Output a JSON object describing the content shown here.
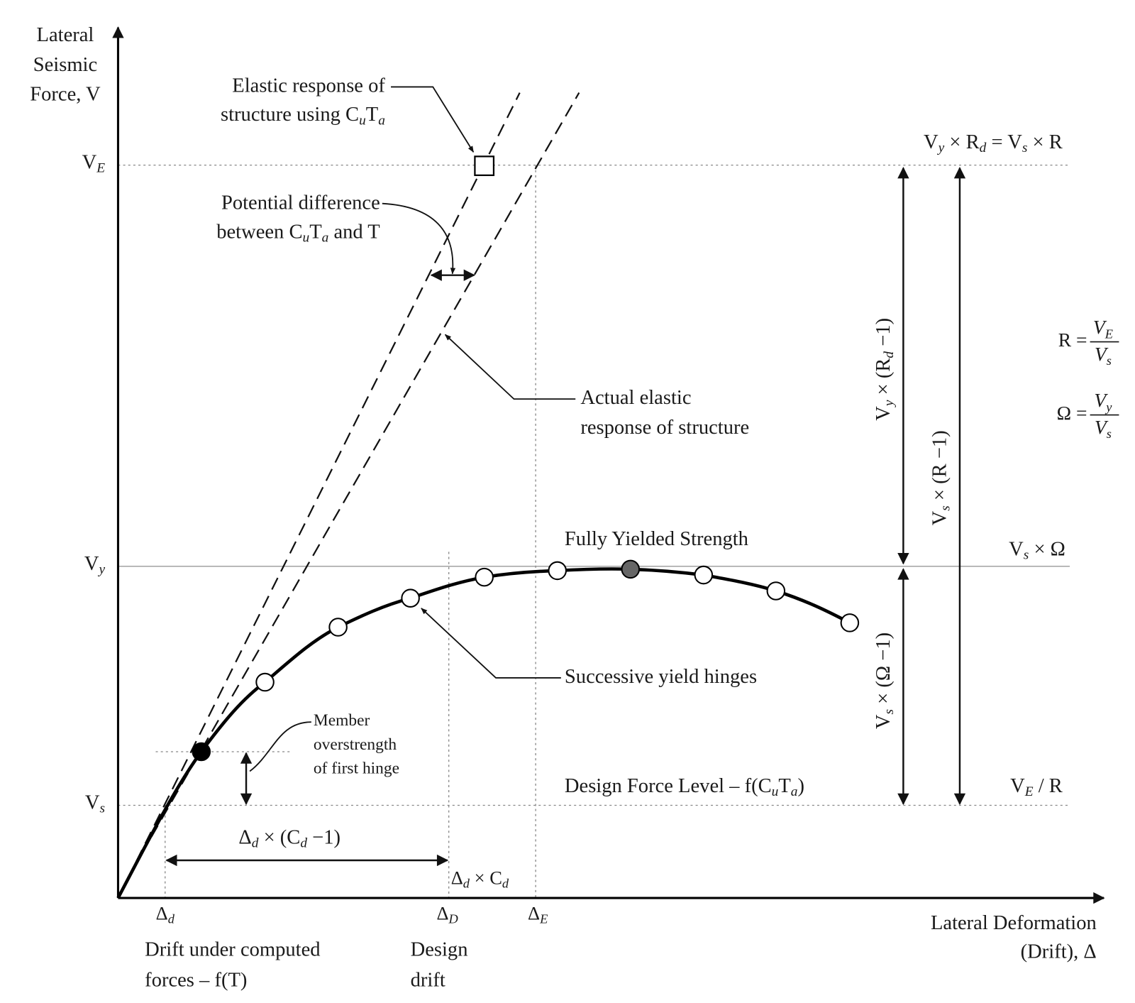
{
  "labels": {
    "y_axis_title": [
      [
        "Lateral"
      ],
      [
        "Seismic"
      ],
      [
        "Force, V"
      ]
    ],
    "x_axis_title": [
      [
        "Lateral Deformation"
      ],
      [
        "(Drift), Δ"
      ]
    ],
    "elastic_response_note": [
      [
        "Elastic response of"
      ],
      [
        "structure using C",
        {
          "sub": "u"
        },
        "T",
        {
          "sub": "a"
        }
      ]
    ],
    "potential_difference_note": [
      [
        "Potential difference"
      ],
      [
        "between C",
        {
          "sub": "u"
        },
        "T",
        {
          "sub": "a"
        },
        " and T"
      ]
    ],
    "actual_elastic_note": [
      [
        "Actual elastic"
      ],
      [
        "response of structure"
      ]
    ],
    "fully_yielded_note": [
      [
        "Fully Yielded Strength"
      ]
    ],
    "successive_hinges_note": [
      [
        "Successive yield hinges"
      ]
    ],
    "member_overstrength_note": [
      [
        "Member"
      ],
      [
        "overstrength"
      ],
      [
        "of first hinge"
      ]
    ],
    "design_force_note": [
      [
        "Design Force Level – f(C",
        {
          "sub": "u"
        },
        "T",
        {
          "sub": "a"
        },
        ")"
      ]
    ],
    "ve_label": [
      [
        "V",
        {
          "sub": "E"
        }
      ]
    ],
    "vy_label": [
      [
        "V",
        {
          "sub": "y"
        }
      ]
    ],
    "vs_label": [
      [
        "V",
        {
          "sub": "s"
        }
      ]
    ],
    "delta_cd_minus_one": [
      [
        "Δ",
        {
          "sub": "d"
        },
        " × (C",
        {
          "sub": "d"
        },
        " −1)"
      ]
    ],
    "delta_times_cd": [
      [
        "Δ",
        {
          "sub": "d"
        },
        " × C",
        {
          "sub": "d"
        }
      ]
    ],
    "delta_d_label": [
      [
        "Δ",
        {
          "sub": "d"
        }
      ]
    ],
    "delta_D_label": [
      [
        "Δ",
        {
          "sub": "D"
        }
      ]
    ],
    "delta_E_label": [
      [
        "Δ",
        {
          "sub": "E"
        }
      ]
    ],
    "drift_computed_note": [
      [
        "Drift under computed"
      ],
      [
        "forces – f(T)"
      ]
    ],
    "design_drift_note": [
      [
        "Design"
      ],
      [
        "drift"
      ]
    ],
    "top_right_eq": [
      [
        "V",
        {
          "sub": "y"
        },
        " × R",
        {
          "sub": "d"
        },
        " = V",
        {
          "sub": "s"
        },
        " × R"
      ]
    ],
    "vs_omega_label": [
      [
        "V",
        {
          "sub": "s"
        },
        " × Ω"
      ]
    ],
    "ve_over_r_label": [
      [
        "V",
        {
          "sub": "E"
        },
        " / R"
      ]
    ],
    "vy_rd_minus_one": [
      [
        "V",
        {
          "sub": "y"
        },
        " × (R",
        {
          "sub": "d"
        },
        " −1)"
      ]
    ],
    "vs_r_minus_one": [
      [
        "V",
        {
          "sub": "s"
        },
        " × (R −1)"
      ]
    ],
    "vs_omega_minus_one": [
      [
        "V",
        {
          "sub": "s"
        },
        " × (Ω −1)"
      ]
    ]
  },
  "formulas": {
    "r_formula": {
      "lhs": "R =",
      "numerator": [
        "V",
        {
          "sub": "E"
        }
      ],
      "denominator": [
        "V",
        {
          "sub": "s"
        }
      ]
    },
    "omega_formula": {
      "lhs": "Ω =",
      "numerator": [
        "V",
        {
          "sub": "y"
        }
      ],
      "denominator": [
        "V",
        {
          "sub": "s"
        }
      ]
    }
  }
}
